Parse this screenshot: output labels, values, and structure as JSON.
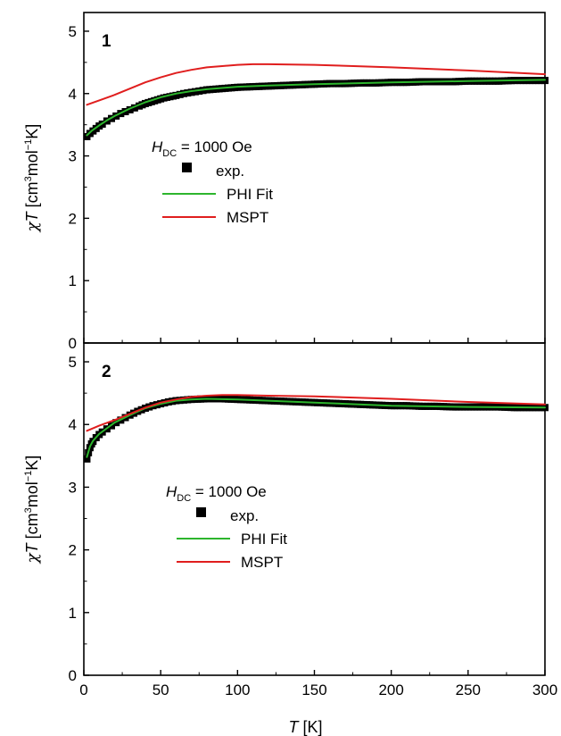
{
  "chart_data": [
    {
      "type": "line",
      "panel_label": "1",
      "xlabel_var": "T",
      "xlabel_unit": "[K]",
      "ylabel": {
        "chi": "χ",
        "var": "T",
        "unit_open": "[cm",
        "exp3": "3",
        "mol": "mol",
        "exp_neg1": "−1",
        "unit_close": "K]"
      },
      "xlim": [
        0,
        300
      ],
      "ylim": [
        0,
        5.3
      ],
      "xticks": [
        0,
        50,
        100,
        150,
        200,
        250,
        300
      ],
      "yticks": [
        0,
        1,
        2,
        3,
        4,
        5
      ],
      "legend": {
        "placement": "left-middle",
        "field_var": "H",
        "field_sub": "DC",
        "field_value": "= 1000 Oe",
        "entries": [
          "exp.",
          "PHI Fit",
          "MSPT"
        ]
      },
      "series": [
        {
          "name": "exp.",
          "kind": "markers",
          "color": "#000000",
          "x": [
            2,
            4,
            6,
            8,
            10,
            12,
            15,
            18,
            21,
            24,
            27,
            30,
            33,
            36,
            40,
            44,
            48,
            52,
            56,
            60,
            65,
            70,
            75,
            80,
            90,
            100,
            110,
            120,
            130,
            140,
            150,
            160,
            170,
            180,
            190,
            200,
            210,
            220,
            230,
            240,
            250,
            260,
            270,
            280,
            290,
            300
          ],
          "y": [
            3.31,
            3.36,
            3.4,
            3.44,
            3.48,
            3.51,
            3.56,
            3.6,
            3.64,
            3.68,
            3.71,
            3.74,
            3.77,
            3.8,
            3.84,
            3.87,
            3.9,
            3.93,
            3.95,
            3.97,
            4.0,
            4.02,
            4.04,
            4.06,
            4.08,
            4.1,
            4.11,
            4.12,
            4.13,
            4.14,
            4.15,
            4.16,
            4.16,
            4.17,
            4.17,
            4.18,
            4.18,
            4.19,
            4.19,
            4.19,
            4.2,
            4.2,
            4.2,
            4.21,
            4.21,
            4.21
          ]
        },
        {
          "name": "PHI Fit",
          "kind": "line",
          "color": "#2db52d",
          "x": [
            2,
            5,
            10,
            15,
            20,
            30,
            40,
            50,
            60,
            70,
            80,
            100,
            120,
            150,
            200,
            250,
            300
          ],
          "y": [
            3.33,
            3.4,
            3.49,
            3.57,
            3.64,
            3.76,
            3.86,
            3.94,
            4.0,
            4.04,
            4.07,
            4.11,
            4.13,
            4.15,
            4.18,
            4.2,
            4.22
          ]
        },
        {
          "name": "MSPT",
          "kind": "line",
          "color": "#e01e1e",
          "x": [
            2,
            10,
            20,
            30,
            40,
            50,
            60,
            70,
            80,
            90,
            100,
            110,
            120,
            150,
            200,
            250,
            300
          ],
          "y": [
            3.82,
            3.89,
            3.98,
            4.08,
            4.18,
            4.26,
            4.33,
            4.38,
            4.42,
            4.44,
            4.46,
            4.47,
            4.47,
            4.46,
            4.42,
            4.37,
            4.31
          ]
        }
      ]
    },
    {
      "type": "line",
      "panel_label": "2",
      "xlabel_var": "T",
      "xlabel_unit": "[K]",
      "ylabel": {
        "chi": "χ",
        "var": "T",
        "unit_open": "[cm",
        "exp3": "3",
        "mol": "mol",
        "exp_neg1": "−1",
        "unit_close": "K]"
      },
      "xlim": [
        0,
        300
      ],
      "ylim": [
        0,
        5.3
      ],
      "xticks": [
        0,
        50,
        100,
        150,
        200,
        250,
        300
      ],
      "yticks": [
        0,
        1,
        2,
        3,
        4,
        5
      ],
      "legend": {
        "placement": "center",
        "field_var": "H",
        "field_sub": "DC",
        "field_value": "= 1000 Oe",
        "entries": [
          "exp.",
          "PHI Fit",
          "MSPT"
        ]
      },
      "series": [
        {
          "name": "exp.",
          "kind": "markers",
          "color": "#000000",
          "x": [
            2,
            3,
            4,
            5,
            6,
            8,
            10,
            12,
            15,
            18,
            21,
            24,
            27,
            30,
            35,
            40,
            45,
            50,
            55,
            60,
            65,
            70,
            80,
            90,
            100,
            110,
            120,
            130,
            140,
            150,
            160,
            170,
            180,
            190,
            200,
            210,
            220,
            230,
            240,
            250,
            260,
            270,
            280,
            290,
            300
          ],
          "y": [
            3.45,
            3.55,
            3.63,
            3.69,
            3.73,
            3.79,
            3.84,
            3.88,
            3.93,
            3.98,
            4.03,
            4.07,
            4.11,
            4.15,
            4.21,
            4.26,
            4.3,
            4.33,
            4.36,
            4.38,
            4.39,
            4.4,
            4.41,
            4.41,
            4.4,
            4.39,
            4.38,
            4.37,
            4.36,
            4.35,
            4.34,
            4.33,
            4.32,
            4.31,
            4.3,
            4.3,
            4.29,
            4.29,
            4.28,
            4.28,
            4.28,
            4.28,
            4.27,
            4.27,
            4.27
          ]
        },
        {
          "name": "PHI Fit",
          "kind": "line",
          "color": "#2db52d",
          "x": [
            2,
            4,
            6,
            10,
            15,
            20,
            30,
            40,
            50,
            60,
            70,
            80,
            100,
            120,
            150,
            200,
            250,
            300
          ],
          "y": [
            3.48,
            3.65,
            3.74,
            3.85,
            3.94,
            4.03,
            4.15,
            4.26,
            4.33,
            4.38,
            4.4,
            4.41,
            4.4,
            4.38,
            4.35,
            4.3,
            4.28,
            4.27
          ]
        },
        {
          "name": "MSPT",
          "kind": "line",
          "color": "#e01e1e",
          "x": [
            2,
            5,
            10,
            20,
            30,
            40,
            50,
            60,
            70,
            80,
            90,
            100,
            120,
            150,
            200,
            250,
            300
          ],
          "y": [
            3.9,
            3.93,
            3.98,
            4.07,
            4.17,
            4.27,
            4.35,
            4.4,
            4.44,
            4.46,
            4.47,
            4.47,
            4.46,
            4.45,
            4.41,
            4.36,
            4.32
          ]
        }
      ]
    }
  ]
}
